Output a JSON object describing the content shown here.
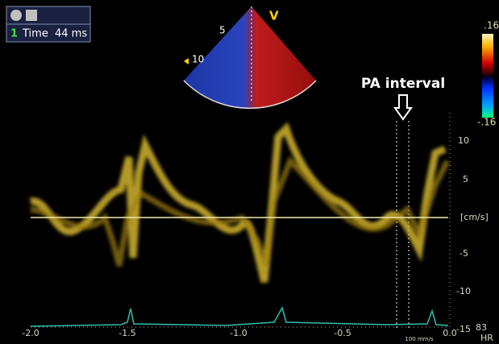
{
  "info_box": {
    "index": "1",
    "label": "Time",
    "value": "44 ms"
  },
  "sector": {
    "depth_labels": [
      "5",
      "10"
    ],
    "mode": "V"
  },
  "color_scale": {
    "max": ".16",
    "min": "-.16"
  },
  "annotation": "PA interval",
  "velocity_axis": {
    "ticks": [
      "10",
      "5",
      "-5",
      "-10",
      "-15"
    ],
    "unit": "[cm/s]"
  },
  "time_axis": {
    "ticks": [
      "-2.0",
      "-1.5",
      "-1.0",
      "-0.5",
      "0.0"
    ],
    "sweep": "100 mm/s"
  },
  "heart_rate": {
    "value": "83",
    "label": "HR"
  }
}
